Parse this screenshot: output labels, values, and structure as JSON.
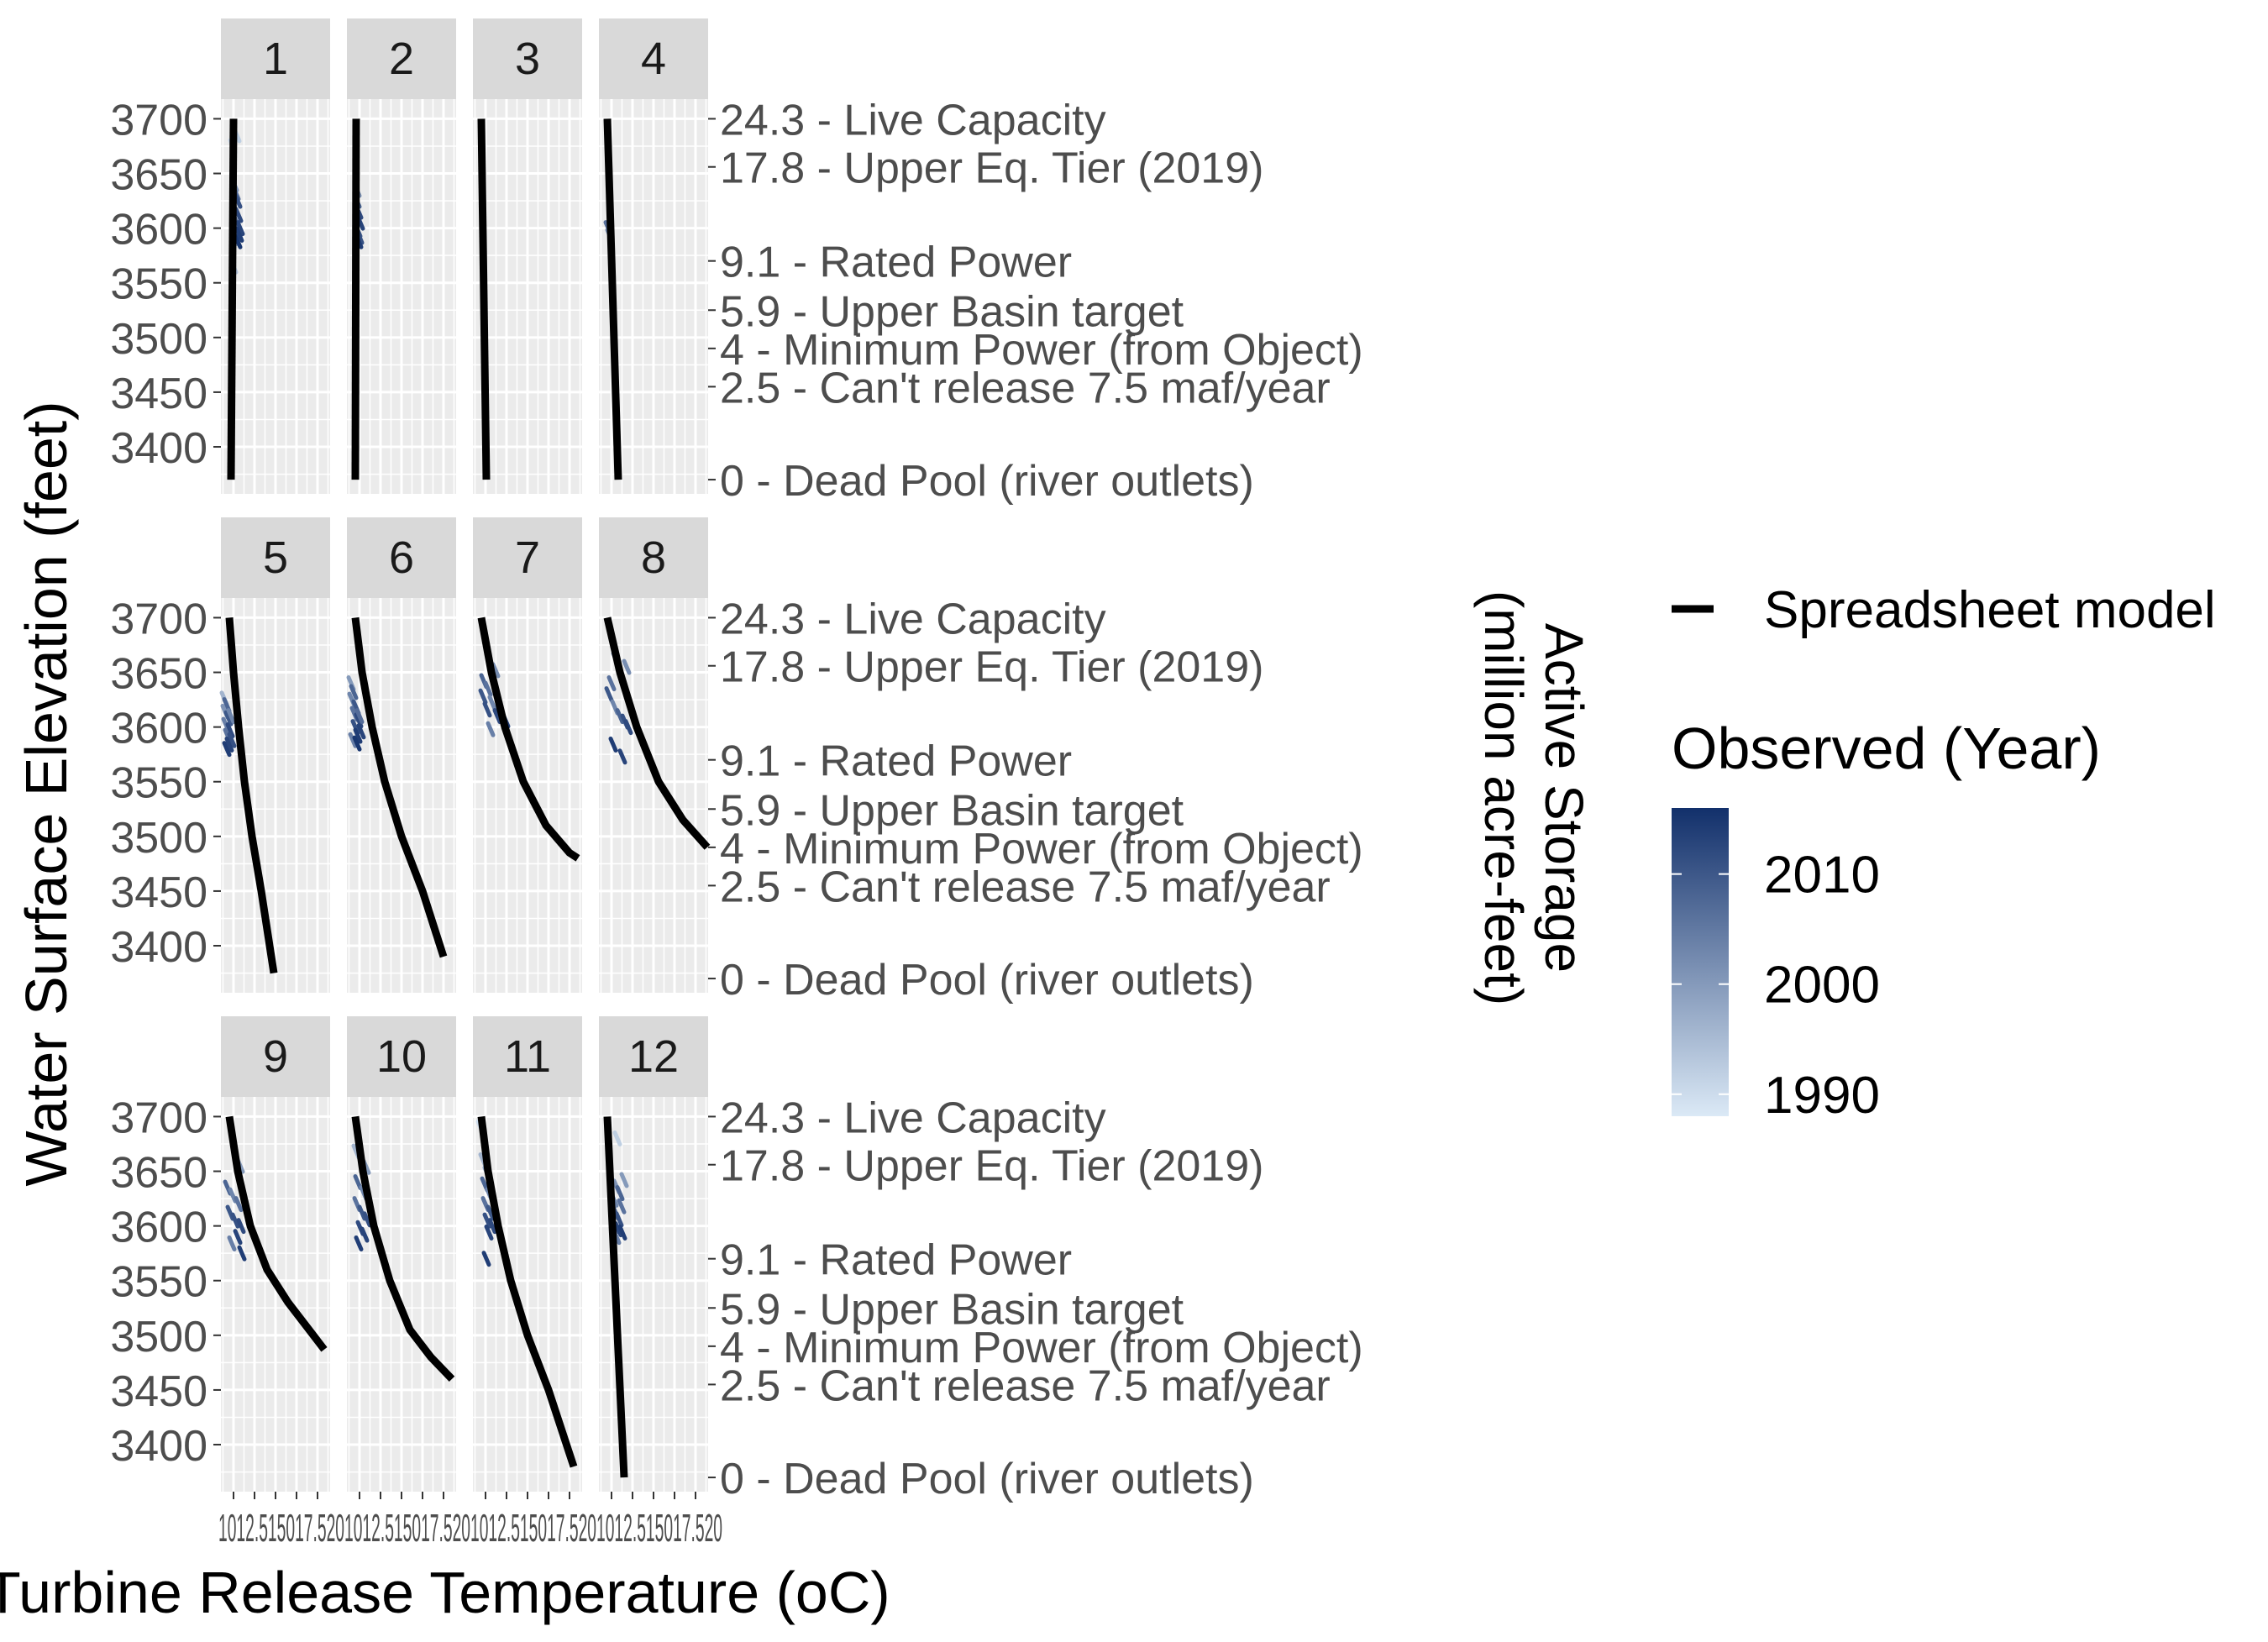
{
  "chart_data": {
    "type": "line",
    "facets": [
      "1",
      "2",
      "3",
      "4",
      "5",
      "6",
      "7",
      "8",
      "9",
      "10",
      "11",
      "12"
    ],
    "xlabel": "Turbine Release Temperature (oC)",
    "ylabel": "Water Surface Elevation (feet)",
    "secondary_ylabel_line1": "Active Storage",
    "secondary_ylabel_line2": "(million acre-feet)",
    "x_ticks": [
      "10",
      "12.5",
      "15",
      "17.5",
      "20"
    ],
    "x_tick_label_text": "1012.515017.520",
    "xlim": [
      8.5,
      21.5
    ],
    "ylim": [
      3357,
      3718
    ],
    "y_ticks": [
      "3700",
      "3650",
      "3600",
      "3550",
      "3500",
      "3450",
      "3400"
    ],
    "y_tick_values": [
      3700,
      3650,
      3600,
      3550,
      3500,
      3450,
      3400
    ],
    "secondary_ticks": [
      {
        "elev": 3700,
        "label": "24.3 - Live Capacity"
      },
      {
        "elev": 3656,
        "label": "17.8 - Upper Eq. Tier (2019)"
      },
      {
        "elev": 3570,
        "label": "9.1 - Rated Power"
      },
      {
        "elev": 3525,
        "label": "5.9 - Upper Basin target"
      },
      {
        "elev": 3490,
        "label": "4 - Minimum Power (from Object)"
      },
      {
        "elev": 3455,
        "label": "2.5 - Can't release 7.5 maf/year"
      },
      {
        "elev": 3370,
        "label": "0 - Dead Pool (river outlets)"
      }
    ],
    "grid": true,
    "legend": {
      "position": "right",
      "line_label": "Spreadsheet model",
      "color_title": "Observed (Year)",
      "color_ticks": [
        "2010",
        "2000",
        "1990"
      ],
      "color_range": [
        1988,
        2016
      ],
      "low_color": "#dbe9f6",
      "high_color": "#12306b"
    },
    "series": [
      {
        "month": 1,
        "model_x": [
          9.7,
          10.0
        ],
        "model_y": [
          3370,
          3700
        ],
        "obs_x": [
          9.9,
          10.1,
          10.3,
          10.5,
          10.2,
          10.6,
          10.4,
          10.8,
          10.3,
          10.7,
          10.1,
          10.5,
          10.0,
          10.4
        ],
        "obs_y": [
          3675,
          3640,
          3632,
          3625,
          3618,
          3612,
          3605,
          3600,
          3597,
          3594,
          3591,
          3588,
          3565,
          3685
        ],
        "obs_year": [
          1990,
          2001,
          2007,
          2011,
          2004,
          2012,
          2006,
          2013,
          2003,
          2014,
          2000,
          2015,
          1994,
          1992
        ]
      },
      {
        "month": 2,
        "model_x": [
          9.5,
          9.6
        ],
        "model_y": [
          3370,
          3700
        ],
        "obs_x": [
          9.7,
          9.9,
          10.1,
          9.8,
          10.0,
          9.9,
          9.7
        ],
        "obs_y": [
          3625,
          3615,
          3605,
          3598,
          3592,
          3588,
          3635
        ],
        "obs_year": [
          2008,
          2012,
          2013,
          2010,
          2011,
          2014,
          2001
        ]
      },
      {
        "month": 3,
        "model_x": [
          10.1,
          9.5
        ],
        "model_y": [
          3370,
          3700
        ],
        "obs_x": [],
        "obs_y": [],
        "obs_year": []
      },
      {
        "month": 4,
        "model_x": [
          10.8,
          9.5
        ],
        "model_y": [
          3370,
          3700
        ],
        "obs_x": [
          9.6,
          9.8
        ],
        "obs_y": [
          3600,
          3593
        ],
        "obs_year": [
          2006,
          2002
        ]
      },
      {
        "month": 5,
        "model_x": [
          9.5,
          10.0,
          10.6,
          11.3,
          12.2,
          13.3,
          14.8
        ],
        "model_y": [
          3700,
          3650,
          3600,
          3550,
          3500,
          3450,
          3375
        ],
        "obs_x": [
          8.9,
          9.2,
          9.0,
          9.4,
          9.1,
          9.6,
          9.3,
          9.8,
          9.5,
          9.2,
          9.7
        ],
        "obs_y": [
          3626,
          3620,
          3614,
          3608,
          3602,
          3597,
          3592,
          3588,
          3584,
          3580,
          3610
        ],
        "obs_year": [
          1996,
          2008,
          2001,
          2010,
          2004,
          2012,
          2006,
          2011,
          2013,
          2014,
          2003
        ]
      },
      {
        "month": 6,
        "model_x": [
          9.5,
          10.3,
          11.5,
          13.0,
          15.0,
          17.5,
          20.0
        ],
        "model_y": [
          3700,
          3650,
          3600,
          3550,
          3500,
          3450,
          3390
        ],
        "obs_x": [
          9.0,
          9.3,
          9.1,
          9.6,
          9.4,
          9.9,
          9.5,
          10.2,
          9.8,
          9.2,
          9.7,
          10.0
        ],
        "obs_y": [
          3640,
          3632,
          3625,
          3618,
          3612,
          3606,
          3600,
          3596,
          3592,
          3588,
          3585,
          3610
        ],
        "obs_year": [
          2000,
          2008,
          2003,
          2010,
          2006,
          2012,
          2011,
          2013,
          2014,
          2004,
          2015,
          2007
        ]
      },
      {
        "month": 7,
        "model_x": [
          9.5,
          10.7,
          12.3,
          14.5,
          17.2,
          20.0,
          21.0
        ],
        "model_y": [
          3700,
          3650,
          3600,
          3550,
          3510,
          3485,
          3480
        ],
        "obs_x": [
          10.5,
          11.2,
          9.8,
          10.3,
          9.7,
          10.8,
          10.2,
          11.4,
          12.0,
          12.4,
          10.6
        ],
        "obs_y": [
          3662,
          3652,
          3642,
          3635,
          3628,
          3622,
          3616,
          3610,
          3608,
          3606,
          3598
        ],
        "obs_year": [
          2000,
          2002,
          2008,
          2006,
          2010,
          2003,
          2011,
          2012,
          2013,
          2014,
          2004
        ]
      },
      {
        "month": 8,
        "model_x": [
          9.5,
          11.0,
          13.0,
          15.6,
          18.5,
          21.4
        ],
        "model_y": [
          3700,
          3650,
          3600,
          3550,
          3515,
          3490
        ],
        "obs_x": [
          10.5,
          11.8,
          10.0,
          9.7,
          10.4,
          11.0,
          11.6,
          12.0,
          10.2,
          11.3
        ],
        "obs_y": [
          3662,
          3655,
          3640,
          3630,
          3618,
          3610,
          3605,
          3600,
          3584,
          3573
        ],
        "obs_year": [
          2000,
          2002,
          2006,
          2010,
          2003,
          2008,
          2011,
          2012,
          2014,
          2013
        ]
      },
      {
        "month": 9,
        "model_x": [
          9.5,
          10.5,
          12.0,
          14.0,
          16.5,
          19.0,
          20.8
        ],
        "model_y": [
          3700,
          3650,
          3600,
          3560,
          3530,
          3505,
          3487
        ],
        "obs_x": [
          10.8,
          9.3,
          9.9,
          10.6,
          9.6,
          10.2,
          10.9,
          10.5,
          11.0,
          9.8
        ],
        "obs_y": [
          3655,
          3635,
          3628,
          3620,
          3612,
          3605,
          3600,
          3590,
          3575,
          3584
        ],
        "obs_year": [
          2000,
          2008,
          2003,
          2006,
          2010,
          2011,
          2012,
          2013,
          2014,
          2004
        ]
      },
      {
        "month": 10,
        "model_x": [
          9.5,
          10.4,
          11.7,
          13.6,
          16.0,
          18.5,
          21.0
        ],
        "model_y": [
          3700,
          3650,
          3600,
          3550,
          3505,
          3480,
          3460
        ],
        "obs_x": [
          9.6,
          10.8,
          9.8,
          10.5,
          9.7,
          10.3,
          10.9,
          10.1,
          10.6,
          9.9
        ],
        "obs_y": [
          3668,
          3654,
          3640,
          3630,
          3620,
          3612,
          3606,
          3598,
          3592,
          3584
        ],
        "obs_year": [
          1996,
          2000,
          2008,
          2003,
          2006,
          2010,
          2011,
          2012,
          2013,
          2014
        ]
      },
      {
        "month": 11,
        "model_x": [
          9.5,
          10.3,
          11.5,
          13.0,
          15.0,
          17.5,
          20.5
        ],
        "model_y": [
          3700,
          3650,
          3600,
          3550,
          3500,
          3450,
          3380
        ],
        "obs_x": [
          9.4,
          9.7,
          10.2,
          9.9,
          10.5,
          10.0,
          10.6,
          10.2,
          10.8,
          10.4,
          10.1
        ],
        "obs_y": [
          3690,
          3660,
          3648,
          3638,
          3628,
          3620,
          3612,
          3605,
          3600,
          3594,
          3570
        ],
        "obs_year": [
          1990,
          1996,
          2000,
          2008,
          2003,
          2006,
          2010,
          2011,
          2012,
          2013,
          2014
        ]
      },
      {
        "month": 12,
        "model_x": [
          11.5,
          9.5
        ],
        "model_y": [
          3370,
          3700
        ],
        "obs_x": [
          10.7,
          11.5,
          10.6,
          11.0,
          10.3,
          11.2,
          10.5,
          10.9,
          10.4,
          10.8,
          11.3,
          10.6
        ],
        "obs_y": [
          3680,
          3642,
          3636,
          3630,
          3624,
          3618,
          3612,
          3606,
          3600,
          3597,
          3594,
          3590
        ],
        "obs_year": [
          1992,
          2000,
          2001,
          2008,
          2003,
          2006,
          2010,
          2011,
          2012,
          2013,
          2014,
          2004
        ]
      }
    ]
  }
}
